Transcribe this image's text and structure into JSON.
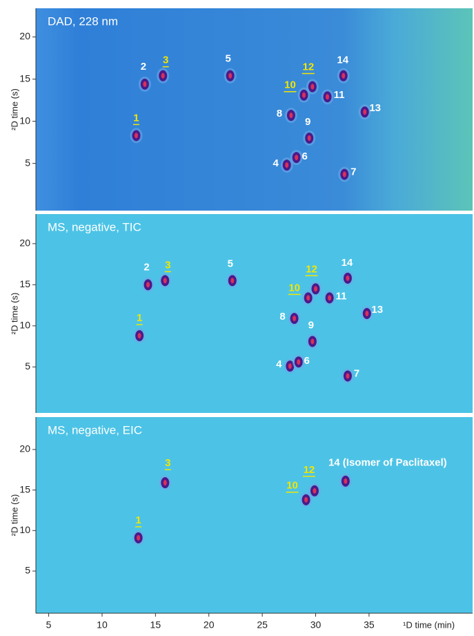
{
  "chart_data": [
    {
      "type": "scatter",
      "title": "DAD, 228 nm",
      "ylabel": "²D time (s)",
      "background": "dad",
      "xlim": [
        3.8,
        44.7
      ],
      "ylim": [
        -0.6,
        23.4
      ],
      "yticks": [
        5,
        10,
        15,
        20
      ],
      "series": [
        {
          "color": "#4a1a8a",
          "x": [
            13.2,
            14.0,
            15.7,
            27.3,
            22.0,
            28.2,
            32.7,
            27.7,
            29.4,
            28.9,
            31.1,
            29.7,
            34.6,
            32.6
          ],
          "values": [
            8.3,
            14.4,
            15.4,
            4.8,
            15.4,
            5.7,
            3.7,
            10.7,
            8.0,
            13.1,
            12.9,
            14.1,
            11.1,
            15.4
          ],
          "labels": [
            "1",
            "2",
            "3",
            "4",
            "5",
            "6",
            "7",
            "8",
            "9",
            "10",
            "11",
            "12",
            "13",
            "14"
          ],
          "label_colors": [
            "#f2e600",
            "#ffffff",
            "#f2e600",
            "#ffffff",
            "#ffffff",
            "#ffffff",
            "#ffffff",
            "#ffffff",
            "#ffffff",
            "#f2e600",
            "#ffffff",
            "#f2e600",
            "#ffffff",
            "#ffffff"
          ],
          "label_underline": [
            true,
            false,
            true,
            false,
            false,
            false,
            false,
            false,
            false,
            true,
            false,
            true,
            false,
            false
          ]
        }
      ]
    },
    {
      "type": "scatter",
      "title": "MS, negative, TIC",
      "ylabel": "²D time (s)",
      "background": "#4cc3e6",
      "xlim": [
        3.8,
        44.7
      ],
      "ylim": [
        -0.6,
        23.6
      ],
      "yticks": [
        5,
        10,
        15,
        20
      ],
      "series": [
        {
          "color": "#4a1a8a",
          "x": [
            13.5,
            14.3,
            15.9,
            27.6,
            22.2,
            28.4,
            33.0,
            28.0,
            29.7,
            29.3,
            31.3,
            30.0,
            34.8,
            33.0
          ],
          "values": [
            8.8,
            15.0,
            15.5,
            5.1,
            15.5,
            5.6,
            3.9,
            10.9,
            8.1,
            13.4,
            13.4,
            14.5,
            11.5,
            15.8
          ],
          "labels": [
            "1",
            "2",
            "3",
            "4",
            "5",
            "6",
            "7",
            "8",
            "9",
            "10",
            "11",
            "12",
            "13",
            "14"
          ],
          "label_colors": [
            "#f2e600",
            "#ffffff",
            "#f2e600",
            "#ffffff",
            "#ffffff",
            "#ffffff",
            "#ffffff",
            "#ffffff",
            "#ffffff",
            "#f2e600",
            "#ffffff",
            "#f2e600",
            "#ffffff",
            "#ffffff"
          ],
          "label_underline": [
            true,
            false,
            true,
            false,
            false,
            false,
            false,
            false,
            false,
            true,
            false,
            true,
            false,
            false
          ]
        }
      ]
    },
    {
      "type": "scatter",
      "title": "MS, negative, EIC",
      "ylabel": "²D time (s)",
      "background": "#4cc3e6",
      "xlabel": "¹D time (min)",
      "xlim": [
        3.8,
        44.7
      ],
      "ylim": [
        -0.2,
        24.0
      ],
      "yticks": [
        5,
        10,
        15,
        20
      ],
      "xticks": [
        5,
        10,
        15,
        20,
        25,
        30,
        35
      ],
      "series": [
        {
          "color": "#4a1a8a",
          "x": [
            13.4,
            15.9,
            29.1,
            29.9,
            32.8
          ],
          "values": [
            9.1,
            15.9,
            13.8,
            14.9,
            16.1
          ],
          "labels": [
            "1",
            "3",
            "10",
            "12",
            "14 (Isomer of Paclitaxel)"
          ],
          "label_colors": [
            "#f2e600",
            "#f2e600",
            "#f2e600",
            "#f2e600",
            "#ffffff"
          ],
          "label_underline": [
            true,
            true,
            true,
            true,
            false
          ]
        }
      ]
    }
  ]
}
